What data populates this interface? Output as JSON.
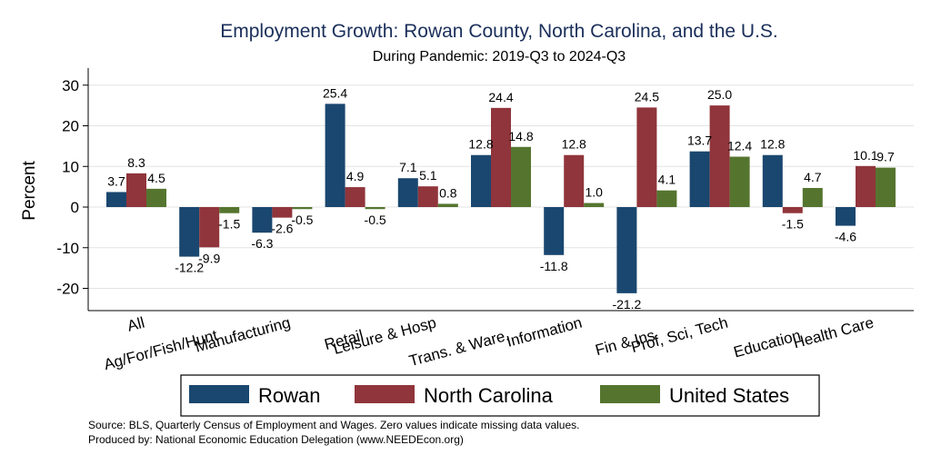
{
  "chart_data": {
    "type": "bar",
    "title": "Employment Growth: Rowan County, North Carolina, and the U.S.",
    "subtitle": "During Pandemic: 2019-Q3 to 2024-Q3",
    "xlabel": "",
    "ylabel": "Percent",
    "ylim": [
      -25,
      33
    ],
    "yticks": [
      30,
      20,
      10,
      0,
      -10,
      -20
    ],
    "grid": true,
    "legend_position": "bottom",
    "categories": [
      "All",
      "Ag/For/Fish/Hunt",
      "Manufacturing",
      "Retail",
      "Leisure & Hosp",
      "Trans. & Ware.",
      "Information",
      "Fin & Ins",
      "Prof, Sci, Tech",
      "Education",
      "Health Care"
    ],
    "series": [
      {
        "name": "Rowan",
        "color": "#1a476f",
        "values": [
          3.7,
          -12.2,
          -6.3,
          25.4,
          7.1,
          12.8,
          -11.8,
          -21.2,
          13.7,
          12.8,
          -4.6
        ]
      },
      {
        "name": "North Carolina",
        "color": "#90353b",
        "values": [
          8.3,
          -9.9,
          -2.6,
          4.9,
          5.1,
          24.4,
          12.8,
          24.5,
          25.0,
          -1.5,
          10.1
        ]
      },
      {
        "name": "United States",
        "color": "#55752f",
        "values": [
          4.5,
          -1.5,
          -0.5,
          -0.5,
          0.8,
          14.8,
          1.0,
          4.1,
          12.4,
          4.7,
          9.7
        ]
      }
    ]
  },
  "footer": {
    "source": "Source: BLS, Quarterly Census of Employment and Wages. Zero values indicate missing data values.",
    "produced": "Produced by: National Economic Education Delegation (www.NEEDEcon.org)"
  }
}
